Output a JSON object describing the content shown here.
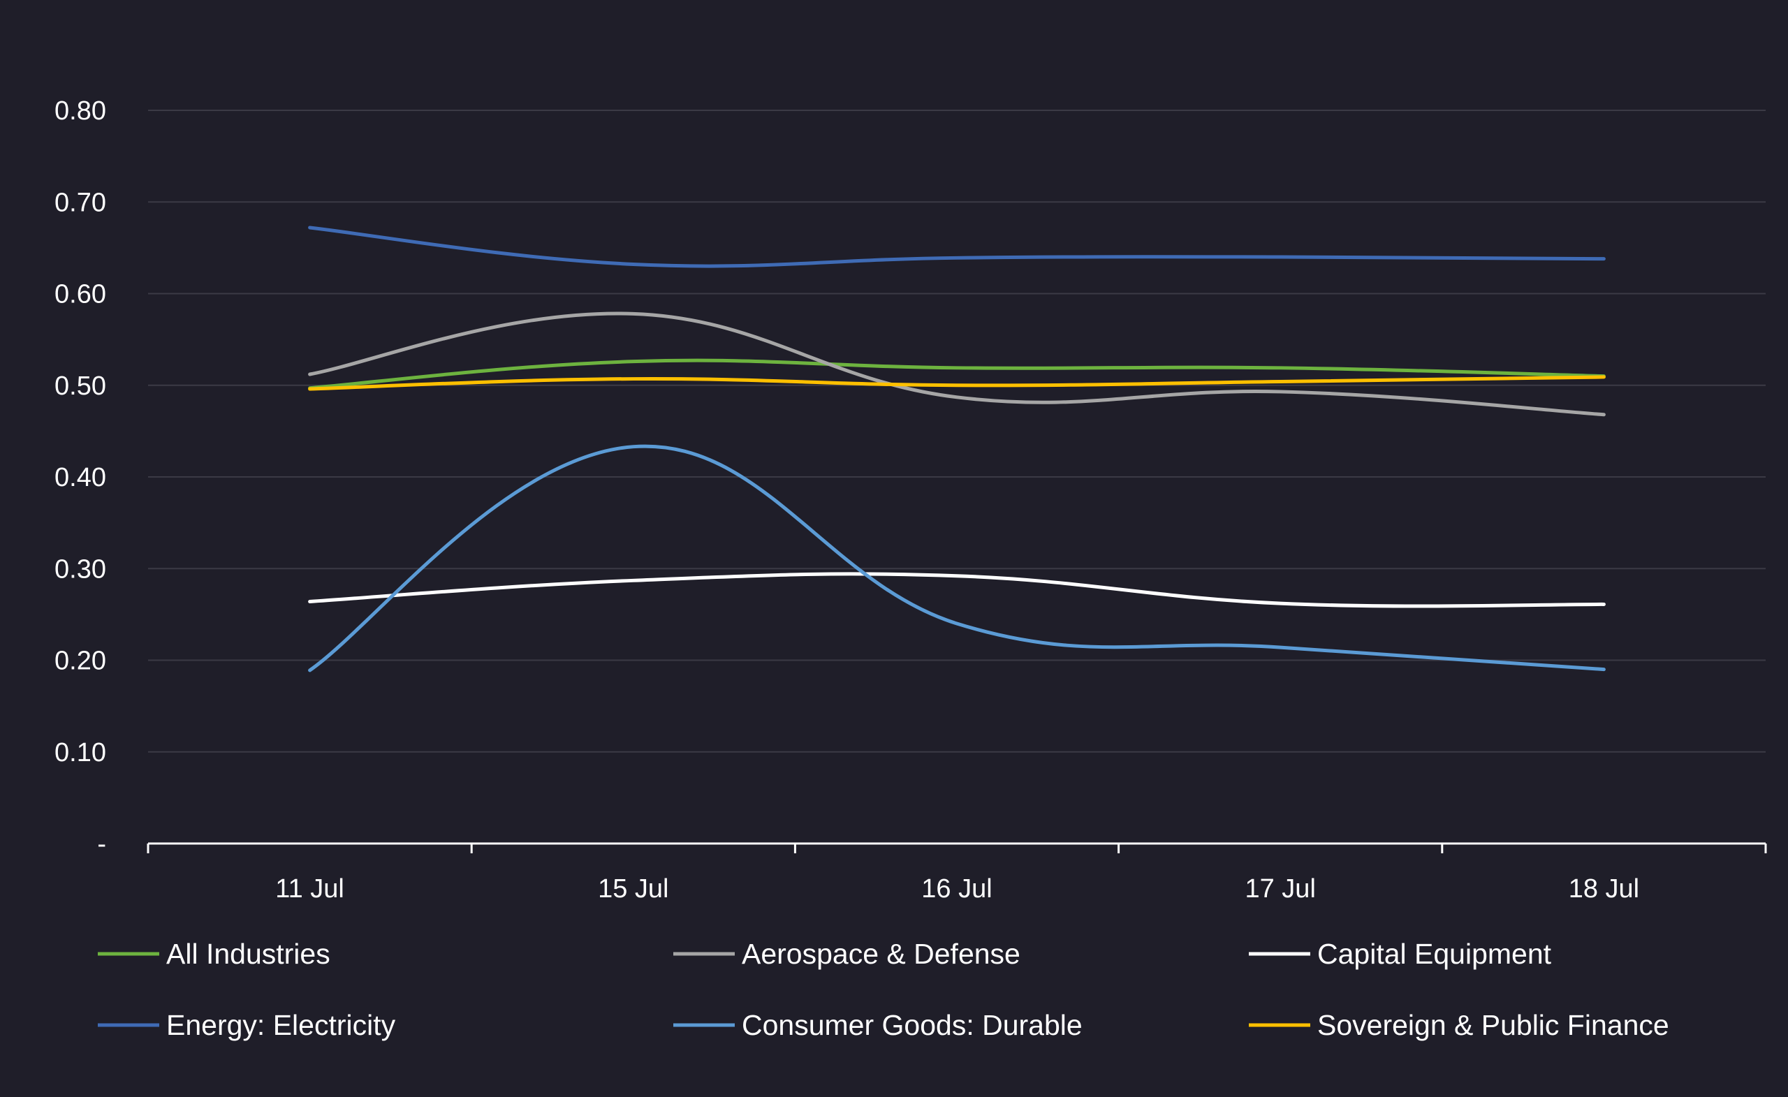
{
  "chart_data": {
    "type": "line",
    "title": "",
    "xlabel": "",
    "ylabel": "",
    "categories": [
      "11 Jul",
      "15 Jul",
      "16 Jul",
      "17 Jul",
      "18 Jul"
    ],
    "ylim": [
      0,
      0.8
    ],
    "yticks": [
      {
        "value": 0.8,
        "label": "0.80"
      },
      {
        "value": 0.7,
        "label": "0.70"
      },
      {
        "value": 0.6,
        "label": "0.60"
      },
      {
        "value": 0.5,
        "label": "0.50"
      },
      {
        "value": 0.4,
        "label": "0.40"
      },
      {
        "value": 0.3,
        "label": "0.30"
      },
      {
        "value": 0.2,
        "label": "0.20"
      },
      {
        "value": 0.1,
        "label": "0.10"
      },
      {
        "value": 0.0,
        "label": "-"
      }
    ],
    "grid": true,
    "legend_position": "bottom",
    "smooth": true,
    "colors": {
      "background": "#1f1e29",
      "grid": "#3b3a45",
      "axis": "#ffffff",
      "text": "#ffffff"
    },
    "series": [
      {
        "name": "All Industries",
        "color": "#6db33f",
        "values": [
          0.497,
          0.526,
          0.519,
          0.519,
          0.51
        ]
      },
      {
        "name": "Aerospace & Defense",
        "color": "#a6a6a6",
        "values": [
          0.512,
          0.578,
          0.487,
          0.493,
          0.468
        ]
      },
      {
        "name": "Capital Equipment",
        "color": "#ffffff",
        "values": [
          0.264,
          0.287,
          0.292,
          0.262,
          0.261
        ]
      },
      {
        "name": "Energy: Electricity",
        "color": "#3f6bb5",
        "values": [
          0.672,
          0.632,
          0.639,
          0.64,
          0.638
        ]
      },
      {
        "name": "Consumer Goods: Durable",
        "color": "#5b9bd5",
        "values": [
          0.189,
          0.433,
          0.24,
          0.214,
          0.19
        ]
      },
      {
        "name": "Sovereign & Public Finance",
        "color": "#ffc000",
        "values": [
          0.496,
          0.507,
          0.5,
          0.504,
          0.509
        ]
      }
    ]
  }
}
